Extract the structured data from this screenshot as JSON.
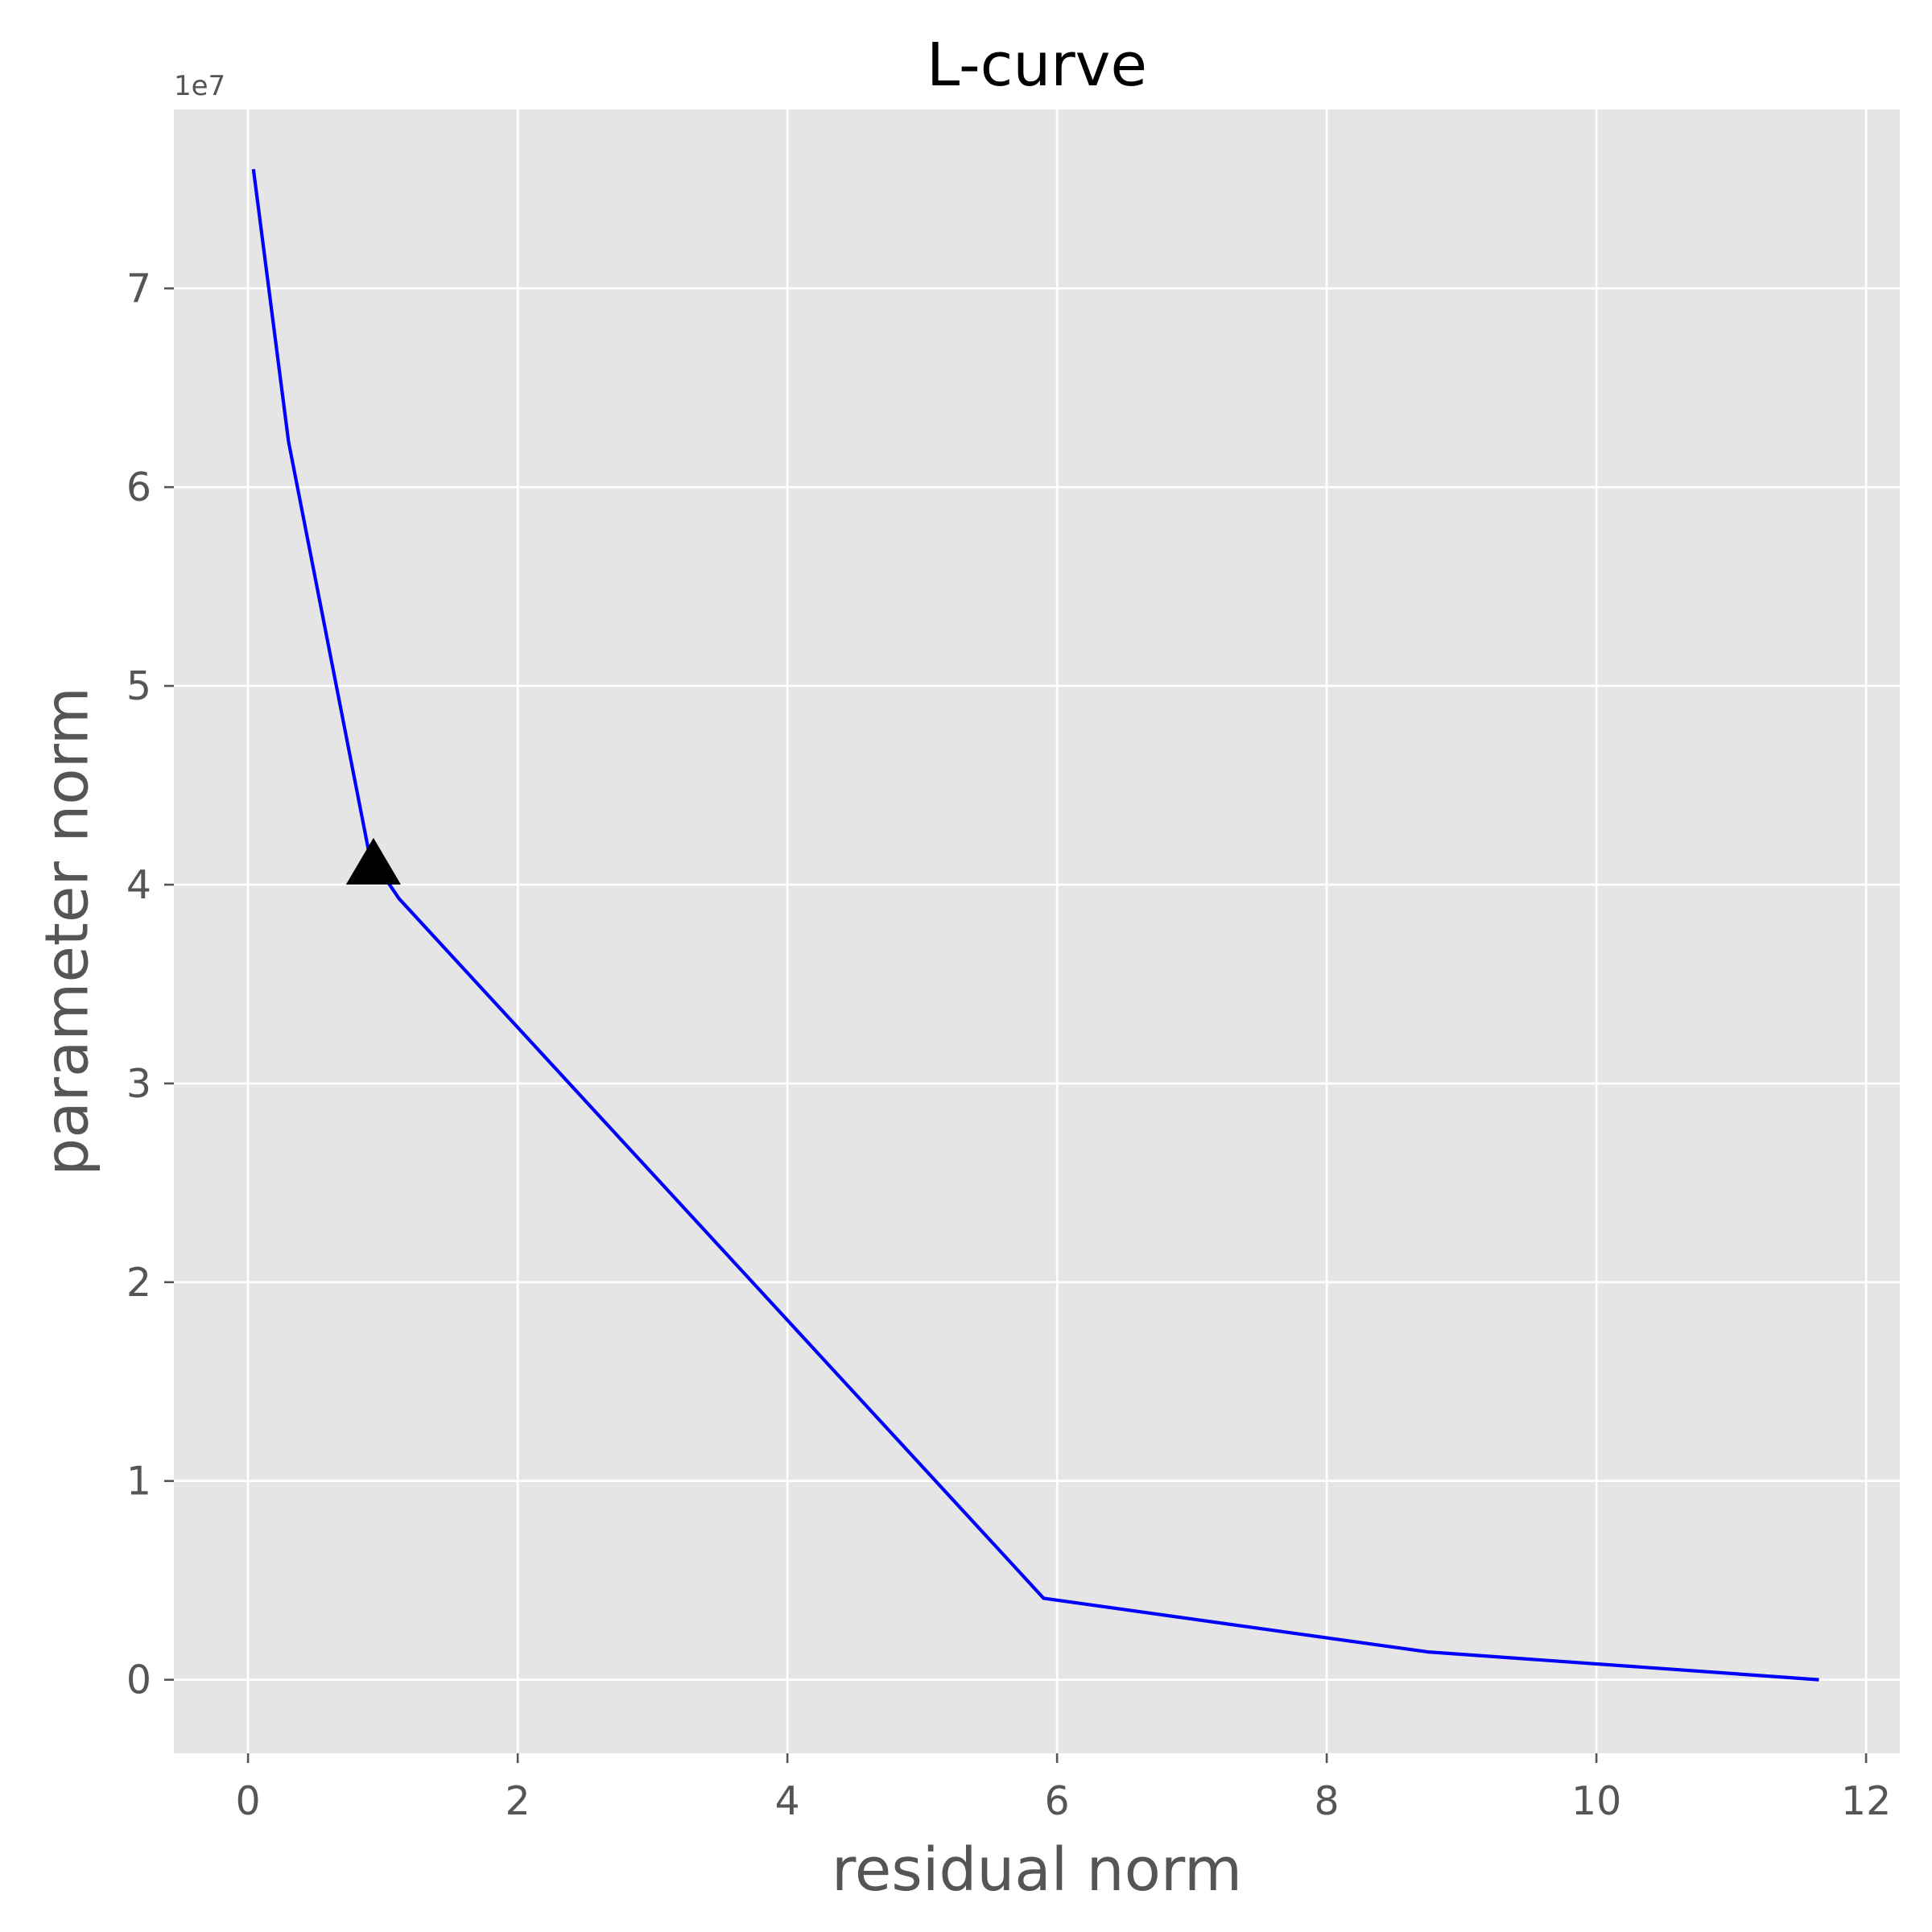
{
  "chart_data": {
    "type": "line",
    "title": "L-curve",
    "xlabel": "residual norm",
    "ylabel": "parameter norm",
    "y_offset_text": "1e7",
    "xlim": [
      -0.55,
      12.25
    ],
    "ylim": [
      -3700000,
      79000000
    ],
    "xticks": [
      0,
      2,
      4,
      6,
      8,
      10,
      12
    ],
    "xtick_labels": [
      "0",
      "2",
      "4",
      "6",
      "8",
      "10",
      "12"
    ],
    "yticks": [
      0,
      10000000,
      20000000,
      30000000,
      40000000,
      50000000,
      60000000,
      70000000
    ],
    "ytick_labels": [
      "0",
      "1",
      "2",
      "3",
      "4",
      "5",
      "6",
      "7"
    ],
    "grid": true,
    "background_color": "#e5e5e5",
    "grid_color": "#ffffff",
    "series": [
      {
        "color": "#0000ff",
        "x": [
          0.04,
          0.3,
          0.9,
          1.12,
          5.9,
          8.75,
          11.65
        ],
        "y": [
          76000000,
          62300000,
          41500000,
          39300000,
          4100000,
          1400000,
          0
        ]
      }
    ],
    "marker": {
      "shape": "triangle-up",
      "color": "#000000",
      "x": 0.93,
      "y": 40900000
    }
  }
}
